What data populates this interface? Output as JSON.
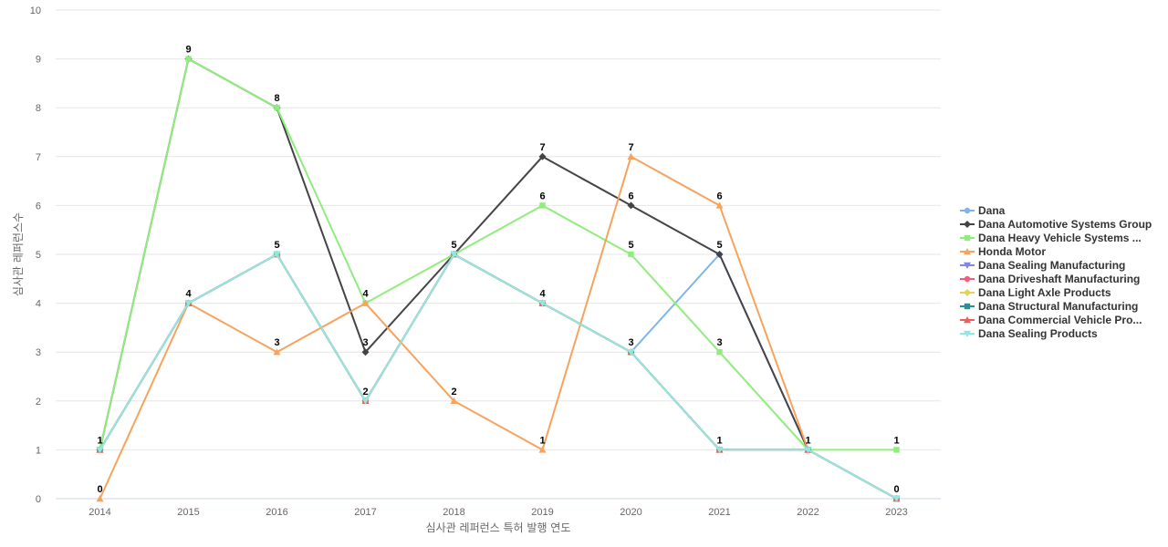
{
  "chart_data": {
    "type": "line",
    "xlabel": "심사관 레퍼런스 특허 발행 연도",
    "ylabel": "심사관 레퍼런스수",
    "categories": [
      "2014",
      "2015",
      "2016",
      "2017",
      "2018",
      "2019",
      "2020",
      "2021",
      "2022",
      "2023"
    ],
    "ylim": [
      0,
      10
    ],
    "yticks": [
      "0",
      "1",
      "2",
      "3",
      "4",
      "5",
      "6",
      "7",
      "8",
      "9",
      "10"
    ],
    "grid": true,
    "legend_position": "right",
    "series": [
      {
        "name": "Dana",
        "color": "#7cb5ec",
        "marker": "circle",
        "values": [
          1,
          4,
          5,
          2,
          5,
          4,
          3,
          5,
          1,
          0
        ]
      },
      {
        "name": "Dana Automotive Systems Group",
        "color": "#434348",
        "marker": "diamond",
        "values": [
          1,
          9,
          8,
          3,
          5,
          7,
          6,
          5,
          1,
          null
        ]
      },
      {
        "name": "Dana Heavy Vehicle Systems ...",
        "color": "#90ed7d",
        "marker": "square",
        "values": [
          1,
          9,
          8,
          4,
          5,
          6,
          5,
          3,
          1,
          1
        ]
      },
      {
        "name": "Honda Motor",
        "color": "#f7a35c",
        "marker": "triangle",
        "values": [
          0,
          4,
          3,
          4,
          2,
          1,
          7,
          6,
          1,
          null
        ]
      },
      {
        "name": "Dana Sealing Manufacturing",
        "color": "#8085e9",
        "marker": "triangle-down",
        "values": [
          1,
          4,
          5,
          2,
          5,
          4,
          3,
          1,
          1,
          0
        ]
      },
      {
        "name": "Dana Driveshaft Manufacturing",
        "color": "#f15c80",
        "marker": "circle",
        "values": [
          1,
          4,
          5,
          2,
          5,
          4,
          3,
          1,
          1,
          0
        ]
      },
      {
        "name": "Dana Light Axle Products",
        "color": "#e4d354",
        "marker": "diamond",
        "values": [
          1,
          4,
          5,
          2,
          5,
          4,
          3,
          1,
          1,
          0
        ]
      },
      {
        "name": "Dana Structural Manufacturing",
        "color": "#2b908f",
        "marker": "square",
        "values": [
          1,
          4,
          5,
          2,
          5,
          4,
          3,
          1,
          1,
          0
        ]
      },
      {
        "name": "Dana Commercial Vehicle Pro...",
        "color": "#f45b5b",
        "marker": "triangle",
        "values": [
          1,
          4,
          5,
          2,
          5,
          4,
          3,
          1,
          1,
          0
        ]
      },
      {
        "name": "Dana Sealing Products",
        "color": "#91e8e1",
        "marker": "triangle-down",
        "values": [
          1,
          4,
          5,
          2,
          5,
          4,
          3,
          1,
          1,
          0
        ]
      }
    ],
    "data_labels": [
      {
        "x": "2014",
        "y": 1,
        "text": "1"
      },
      {
        "x": "2014",
        "y": 0,
        "text": "0"
      },
      {
        "x": "2015",
        "y": 9,
        "text": "9"
      },
      {
        "x": "2015",
        "y": 4,
        "text": "4"
      },
      {
        "x": "2016",
        "y": 8,
        "text": "8"
      },
      {
        "x": "2016",
        "y": 5,
        "text": "5"
      },
      {
        "x": "2016",
        "y": 3,
        "text": "3"
      },
      {
        "x": "2017",
        "y": 4,
        "text": "4"
      },
      {
        "x": "2017",
        "y": 3,
        "text": "3"
      },
      {
        "x": "2017",
        "y": 2,
        "text": "2"
      },
      {
        "x": "2018",
        "y": 5,
        "text": "5"
      },
      {
        "x": "2018",
        "y": 2,
        "text": "2"
      },
      {
        "x": "2019",
        "y": 7,
        "text": "7"
      },
      {
        "x": "2019",
        "y": 6,
        "text": "6"
      },
      {
        "x": "2019",
        "y": 4,
        "text": "4"
      },
      {
        "x": "2019",
        "y": 1,
        "text": "1"
      },
      {
        "x": "2020",
        "y": 7,
        "text": "7"
      },
      {
        "x": "2020",
        "y": 6,
        "text": "6"
      },
      {
        "x": "2020",
        "y": 5,
        "text": "5"
      },
      {
        "x": "2020",
        "y": 3,
        "text": "3"
      },
      {
        "x": "2021",
        "y": 6,
        "text": "6"
      },
      {
        "x": "2021",
        "y": 5,
        "text": "5"
      },
      {
        "x": "2021",
        "y": 3,
        "text": "3"
      },
      {
        "x": "2021",
        "y": 1,
        "text": "1"
      },
      {
        "x": "2022",
        "y": 1,
        "text": "1"
      },
      {
        "x": "2023",
        "y": 1,
        "text": "1"
      },
      {
        "x": "2023",
        "y": 0,
        "text": "0"
      }
    ]
  }
}
